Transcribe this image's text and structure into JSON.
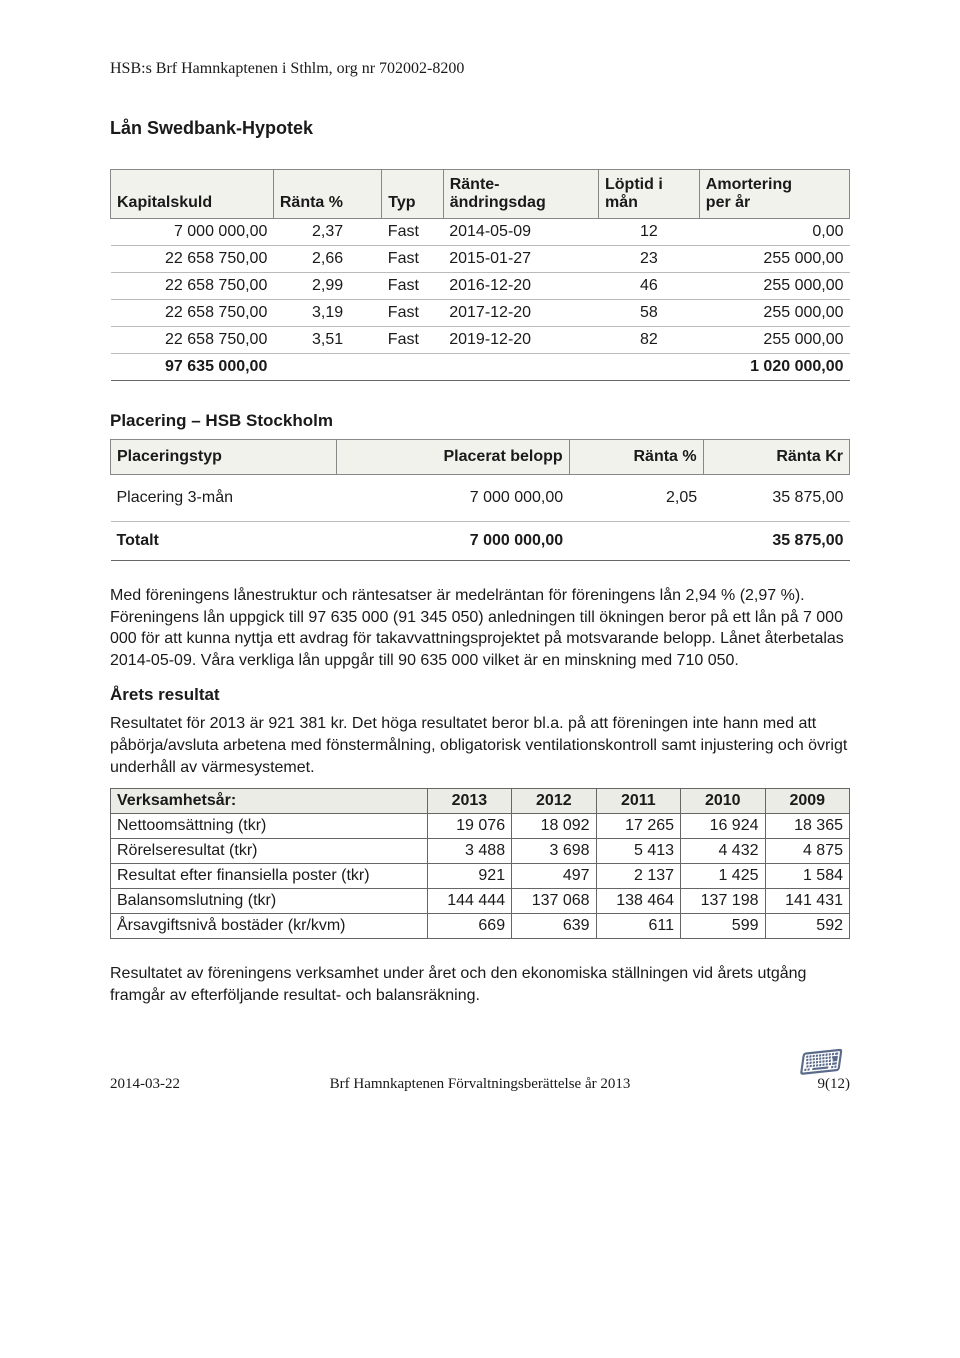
{
  "header": {
    "org_line": "HSB:s Brf Hamnkaptenen i Sthlm, org nr 702002-8200"
  },
  "section1": {
    "title": "Lån Swedbank-Hypotek",
    "columns": [
      "Kapitalskuld",
      "Ränta %",
      "Typ",
      "Ränte-ändringsdag",
      "Löptid i mån",
      "Amortering per år"
    ],
    "rows": [
      {
        "kapitalskuld": "7 000 000,00",
        "ranta": "2,37",
        "typ": "Fast",
        "datum": "2014-05-09",
        "loptid": "12",
        "amort": "0,00"
      },
      {
        "kapitalskuld": "22 658 750,00",
        "ranta": "2,66",
        "typ": "Fast",
        "datum": "2015-01-27",
        "loptid": "23",
        "amort": "255 000,00"
      },
      {
        "kapitalskuld": "22 658 750,00",
        "ranta": "2,99",
        "typ": "Fast",
        "datum": "2016-12-20",
        "loptid": "46",
        "amort": "255 000,00"
      },
      {
        "kapitalskuld": "22 658 750,00",
        "ranta": "3,19",
        "typ": "Fast",
        "datum": "2017-12-20",
        "loptid": "58",
        "amort": "255 000,00"
      },
      {
        "kapitalskuld": "22 658 750,00",
        "ranta": "3,51",
        "typ": "Fast",
        "datum": "2019-12-20",
        "loptid": "82",
        "amort": "255 000,00"
      }
    ],
    "total": {
      "kapitalskuld": "97 635 000,00",
      "amort": "1 020 000,00"
    }
  },
  "section2": {
    "title": "Placering – HSB Stockholm",
    "columns": [
      "Placeringstyp",
      "Placerat belopp",
      "Ränta %",
      "Ränta Kr"
    ],
    "rows": [
      {
        "typ": "Placering 3-mån",
        "belopp": "7 000 000,00",
        "ranta": "2,05",
        "kr": "35 875,00"
      }
    ],
    "total_label": "Totalt",
    "total": {
      "belopp": "7 000 000,00",
      "kr": "35 875,00"
    }
  },
  "para1": "Med föreningens lånestruktur och räntesatser är medelräntan för föreningens lån 2,94 % (2,97 %). Föreningens lån uppgick till 97 635 000 (91 345 050) anledningen till ökningen beror på ett lån på 7 000 000 för att kunna nyttja ett avdrag för takavvattningsprojektet på motsvarande belopp. Lånet återbetalas 2014-05-09. Våra verkliga lån uppgår till 90 635 000 vilket är en minskning med 710 050.",
  "arets": {
    "title": "Årets resultat",
    "text": "Resultatet för 2013 är 921 381 kr. Det höga resultatet beror bl.a. på att föreningen inte hann med att påbörja/avsluta arbetena med fönstermålning, obligatorisk ventilationskontroll samt injustering och övrigt underhåll av värmesystemet."
  },
  "years_table": {
    "header_label": "Verksamhetsår:",
    "years": [
      "2013",
      "2012",
      "2011",
      "2010",
      "2009"
    ],
    "rows": [
      {
        "label": "Nettoomsättning (tkr)",
        "vals": [
          "19 076",
          "18 092",
          "17 265",
          "16 924",
          "18 365"
        ]
      },
      {
        "label": "Rörelseresultat (tkr)",
        "vals": [
          "3 488",
          "3 698",
          "5 413",
          "4 432",
          "4 875"
        ]
      },
      {
        "label": "Resultat efter finansiella poster (tkr)",
        "vals": [
          "921",
          "497",
          "2 137",
          "1 425",
          "1 584"
        ]
      },
      {
        "label": "Balansomslutning (tkr)",
        "vals": [
          "144 444",
          "137 068",
          "138 464",
          "137 198",
          "141 431"
        ]
      },
      {
        "label": "Årsavgiftsnivå bostäder (kr/kvm)",
        "vals": [
          "669",
          "639",
          "611",
          "599",
          "592"
        ]
      }
    ]
  },
  "para2": "Resultatet av föreningens verksamhet under året och den ekonomiska ställningen vid årets utgång framgår av efterföljande resultat- och balansräkning.",
  "footer": {
    "date": "2014-03-22",
    "center": "Brf Hamnkaptenen Förvaltningsberättelse år 2013",
    "page": "9(12)"
  }
}
